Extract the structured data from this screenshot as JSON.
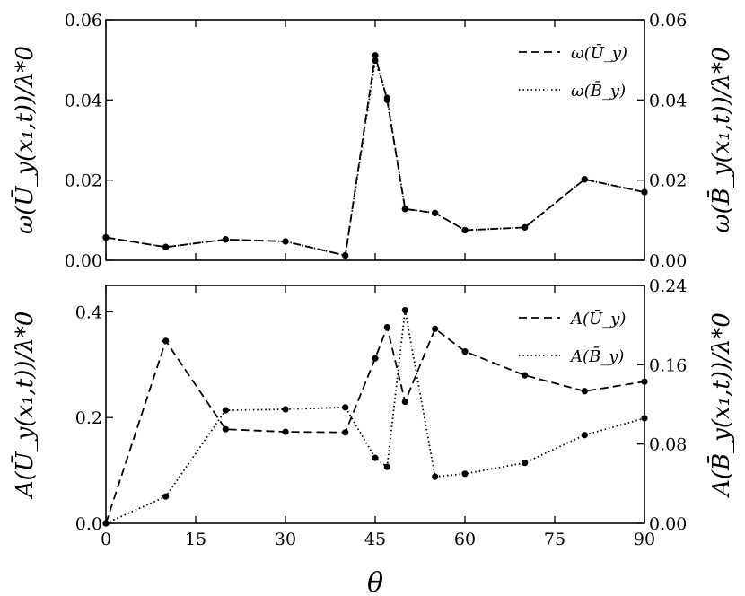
{
  "chart_data": [
    {
      "type": "line",
      "x": [
        0,
        10,
        20,
        30,
        40,
        45,
        47,
        50,
        55,
        60,
        70,
        80,
        90
      ],
      "ylabel_left": "ω(Ū_y(x₁,t))/λ*0",
      "ylabel_right": "ω(B̄_y(x₁,t))/λ*0",
      "ylim_left": [
        0,
        0.06
      ],
      "ylim_right": [
        0,
        0.06
      ],
      "yticks_left": [
        0.0,
        0.02,
        0.04,
        0.06
      ],
      "yticks_right": [
        0.0,
        0.02,
        0.04,
        0.06
      ],
      "ytick_labels_left": [
        "0.00",
        "0.02",
        "0.04",
        "0.06"
      ],
      "ytick_labels_right": [
        "0.00",
        "0.02",
        "0.04",
        "0.06"
      ],
      "legend_position": "top-right",
      "series": [
        {
          "name": "ω(Ū_y)",
          "axis": "left",
          "dash": "dashed",
          "markers": false,
          "values": [
            0.0057,
            0.0033,
            0.0052,
            0.0047,
            0.0012,
            0.0511,
            0.04,
            0.0128,
            0.0118,
            0.0075,
            0.0082,
            0.0202,
            0.017
          ]
        },
        {
          "name": "ω(B̄_y)",
          "axis": "right",
          "dash": "dotted",
          "markers": false,
          "values": [
            0.0057,
            0.0033,
            0.0052,
            0.0047,
            0.0012,
            0.0498,
            0.0405,
            0.0128,
            0.0118,
            0.0075,
            0.0082,
            0.0202,
            0.017
          ]
        },
        {
          "name": "",
          "axis": "left",
          "dash": "none",
          "markers": true,
          "values": [
            0.0057,
            0.0033,
            0.0052,
            0.0047,
            0.0012,
            0.0511,
            0.04,
            0.0128,
            0.0118,
            0.0075,
            0.0082,
            0.0202,
            0.017
          ]
        },
        {
          "name": "",
          "axis": "right",
          "dash": "none",
          "markers": true,
          "values": [
            0.0057,
            0.0033,
            0.0052,
            0.0047,
            0.0012,
            0.0498,
            0.0405,
            0.0128,
            0.0118,
            0.0075,
            0.0082,
            0.0202,
            0.017
          ]
        }
      ]
    },
    {
      "type": "line",
      "x": [
        0,
        10,
        20,
        30,
        40,
        45,
        47,
        50,
        55,
        60,
        70,
        80,
        90
      ],
      "xlabel": "θ",
      "xlim": [
        0,
        90
      ],
      "xticks": [
        0,
        15,
        30,
        45,
        60,
        75,
        90
      ],
      "xtick_labels": [
        "0",
        "15",
        "30",
        "45",
        "60",
        "75",
        "90"
      ],
      "ylabel_left": "A(Ū_y(x₁,t))/λ*0",
      "ylabel_right": "A(B̄_y(x₁,t))/λ*0",
      "ylim_left": [
        0,
        0.45
      ],
      "ylim_right": [
        0,
        0.24
      ],
      "yticks_left": [
        0.0,
        0.2,
        0.4
      ],
      "yticks_right": [
        0.0,
        0.08,
        0.16,
        0.24
      ],
      "ytick_labels_left": [
        "0.0",
        "0.2",
        "0.4"
      ],
      "ytick_labels_right": [
        "0.00",
        "0.08",
        "0.16",
        "0.24"
      ],
      "legend_position": "top-right",
      "series": [
        {
          "name": "A(Ū_y)",
          "axis": "left",
          "dash": "dashed",
          "markers": true,
          "values": [
            0.0,
            0.345,
            0.178,
            0.173,
            0.172,
            0.312,
            0.371,
            0.23,
            0.368,
            0.325,
            0.28,
            0.25,
            0.268
          ]
        },
        {
          "name": "A(B̄_y)",
          "axis": "right",
          "dash": "dotted",
          "markers": true,
          "values": [
            0.0,
            0.027,
            0.114,
            0.115,
            0.117,
            0.066,
            0.057,
            0.215,
            0.047,
            0.05,
            0.061,
            0.089,
            0.106
          ]
        }
      ]
    }
  ]
}
